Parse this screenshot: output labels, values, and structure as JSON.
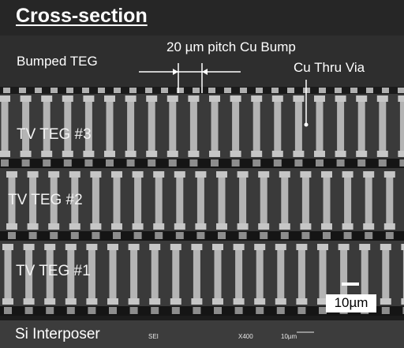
{
  "figure": {
    "title": "Cross-section",
    "labels": {
      "bumped_teg": "Bumped TEG",
      "pitch": "20 µm pitch Cu Bump",
      "thru_via": "Cu Thru Via",
      "teg3": "TV TEG #3",
      "teg2": "TV TEG #2",
      "teg1": "TV TEG #1",
      "interposer": "Si Interposer"
    },
    "scale_bar": {
      "label": "10µm"
    },
    "footer": {
      "detector": "SEI",
      "magnification": "X400",
      "scale": "10µm"
    }
  },
  "colors": {
    "background": "#2e2e2e",
    "via": "#b4b4b4",
    "bump_layer": "#151515",
    "text": "#ffffff"
  }
}
